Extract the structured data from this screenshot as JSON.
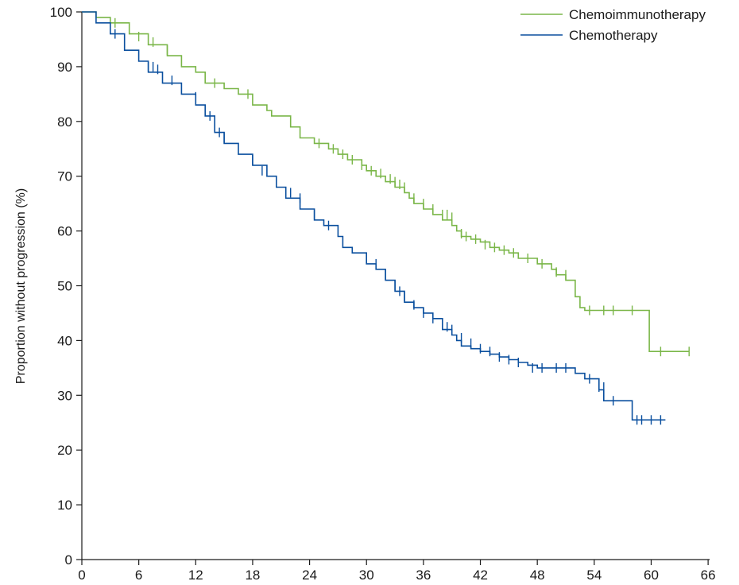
{
  "chart_data": {
    "type": "line",
    "step": true,
    "title": "",
    "xlabel": "",
    "ylabel": "Proportion without progression (%)",
    "xlim": [
      0,
      68
    ],
    "ylim": [
      0,
      100
    ],
    "x_ticks": [
      0,
      6,
      12,
      18,
      24,
      30,
      36,
      42,
      48,
      54,
      60,
      66
    ],
    "y_ticks": [
      0,
      10,
      20,
      30,
      40,
      50,
      60,
      70,
      80,
      90,
      100
    ],
    "grid": false,
    "legend_position": "top-right",
    "series": [
      {
        "name": "Chemoimmunotherapy",
        "color": "#7ab648",
        "x": [
          0,
          1.5,
          3,
          5,
          7,
          9,
          10.5,
          12,
          13,
          15,
          16.5,
          18,
          19.5,
          20,
          22,
          23,
          24.5,
          26,
          27,
          28,
          29.5,
          30,
          31,
          32,
          33,
          34,
          34.5,
          35,
          36,
          37,
          38,
          39,
          39.5,
          40,
          41,
          42,
          43,
          44,
          45,
          46,
          48,
          49.5,
          50,
          51,
          52,
          52.5,
          53,
          57,
          59.8,
          60,
          64
        ],
        "y": [
          100,
          99,
          98,
          96,
          94,
          92,
          90,
          89,
          87,
          86,
          85,
          83,
          82,
          81,
          79,
          77,
          76,
          75,
          74,
          73,
          72,
          71,
          70,
          69,
          68,
          67,
          66,
          65,
          64,
          63,
          62,
          61,
          60,
          59,
          58.5,
          58,
          57,
          56.5,
          56,
          55,
          54,
          53,
          52,
          51,
          48,
          46,
          45.5,
          45.5,
          38,
          38,
          38
        ],
        "censor_x": [
          3.5,
          6,
          7.5,
          9,
          14,
          17.5,
          25,
          26.5,
          27.5,
          28.5,
          29.5,
          30.5,
          31.5,
          32.5,
          33,
          33.5,
          34,
          35,
          36,
          37,
          38,
          38.5,
          39,
          40,
          40.5,
          41.5,
          42.5,
          43.5,
          44.5,
          45.5,
          47,
          48.5,
          50,
          51,
          53.5,
          55,
          56,
          58,
          61,
          64
        ],
        "censor_y": [
          98,
          95.5,
          94.5,
          93,
          87,
          85,
          76,
          75,
          74,
          73,
          72,
          71,
          70.5,
          69.5,
          69,
          68.5,
          68,
          66,
          65,
          64,
          63,
          63,
          62.5,
          59.5,
          59,
          58.5,
          57.5,
          57,
          56.5,
          56,
          55,
          54,
          52.5,
          52,
          45.5,
          45.5,
          45.5,
          45.5,
          38,
          38
        ]
      },
      {
        "name": "Chemotherapy",
        "color": "#0a4f9e",
        "x": [
          0,
          1.5,
          3,
          4.5,
          6,
          7,
          8.5,
          10.5,
          12,
          13,
          14,
          15,
          16.5,
          18,
          19.5,
          20.5,
          21.5,
          23,
          24.5,
          25.5,
          27,
          27.5,
          28.5,
          30,
          31,
          32,
          33,
          34,
          35,
          36,
          37,
          38,
          39,
          39.5,
          40,
          41,
          42,
          43,
          44,
          45,
          46,
          47,
          48,
          50,
          51,
          52,
          53,
          54.5,
          55,
          57,
          58,
          60,
          61.5
        ],
        "y": [
          100,
          98,
          96,
          93,
          91,
          89,
          87,
          85,
          83,
          81,
          78,
          76,
          74,
          72,
          70,
          68,
          66,
          64,
          62,
          61,
          59,
          57,
          56,
          54,
          53,
          51,
          49,
          47,
          46,
          45,
          44,
          42,
          41,
          40,
          39,
          38.5,
          38,
          37.5,
          37,
          36.5,
          36,
          35.5,
          35,
          35,
          35,
          34,
          33,
          31,
          29,
          29,
          25.5,
          25.5,
          25.5
        ],
        "censor_x": [
          3.5,
          4.5,
          7,
          7.5,
          8,
          9.5,
          12,
          13.5,
          14.5,
          15,
          18,
          19,
          22,
          23,
          24.5,
          26,
          30,
          31,
          32,
          33,
          33.5,
          34,
          35,
          36,
          37,
          38,
          38.5,
          39,
          40,
          41,
          42,
          43,
          44,
          45,
          46,
          47.5,
          48.5,
          50,
          51,
          53.5,
          54.5,
          55,
          56,
          58.5,
          59,
          60,
          61
        ],
        "censor_y": [
          96,
          94.5,
          90,
          90,
          89.5,
          87.5,
          84.5,
          81,
          78,
          77,
          73,
          71,
          67,
          66,
          63,
          61,
          55,
          54,
          52,
          50,
          49,
          48,
          46.5,
          45,
          44,
          43,
          42.5,
          42,
          40.5,
          39.5,
          38.5,
          38,
          37,
          36.5,
          36,
          35,
          35,
          35,
          35,
          33,
          31.5,
          31.5,
          29,
          25.5,
          25.5,
          25.5,
          25.5
        ]
      }
    ]
  }
}
